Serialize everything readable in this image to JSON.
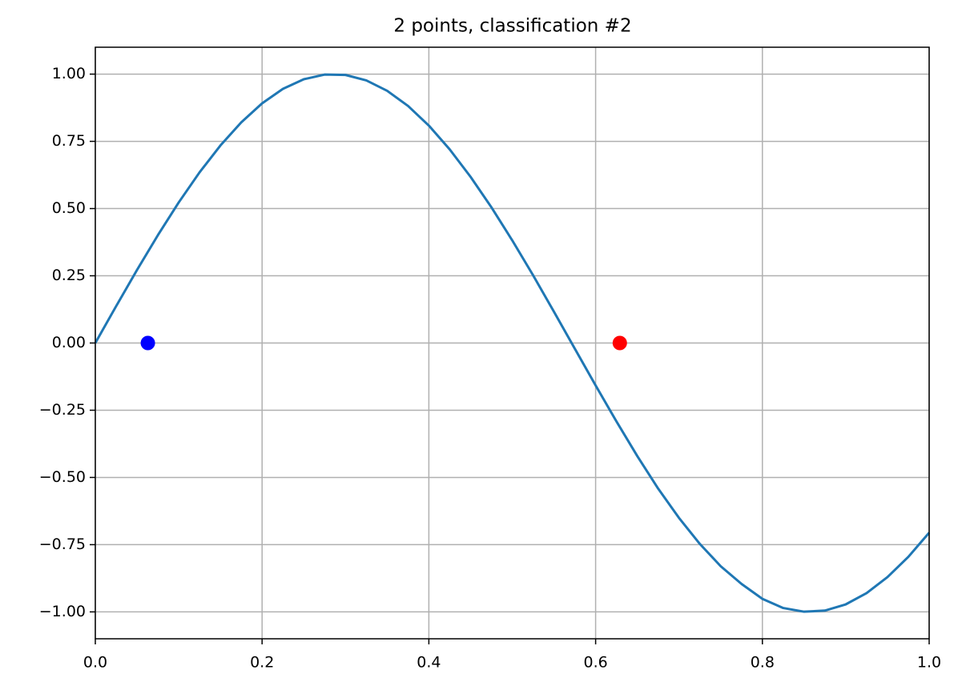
{
  "chart_data": {
    "type": "line",
    "title": "2 points, classification #2",
    "xlim": [
      0,
      1
    ],
    "ylim": [
      -1.1,
      1.1
    ],
    "grid": true,
    "xticks": [
      {
        "value": 0,
        "label": "0.0"
      },
      {
        "value": 0.2,
        "label": "0.2"
      },
      {
        "value": 0.4,
        "label": "0.4"
      },
      {
        "value": 0.6,
        "label": "0.6"
      },
      {
        "value": 0.8,
        "label": "0.8"
      },
      {
        "value": 1,
        "label": "1.0"
      }
    ],
    "yticks": [
      {
        "value": -1,
        "label": "−1.00"
      },
      {
        "value": -0.75,
        "label": "−0.75"
      },
      {
        "value": -0.5,
        "label": "−0.50"
      },
      {
        "value": -0.25,
        "label": "−0.25"
      },
      {
        "value": 0,
        "label": "0.00"
      },
      {
        "value": 0.25,
        "label": "0.25"
      },
      {
        "value": 0.5,
        "label": "0.50"
      },
      {
        "value": 0.75,
        "label": "0.75"
      },
      {
        "value": 1,
        "label": "1.00"
      }
    ],
    "series": [
      {
        "type": "line",
        "color": "#1f77b4",
        "x": [
          0,
          0.025,
          0.05,
          0.075,
          0.1,
          0.125,
          0.15,
          0.175,
          0.2,
          0.225,
          0.25,
          0.275,
          0.3,
          0.325,
          0.35,
          0.375,
          0.4,
          0.425,
          0.45,
          0.475,
          0.5,
          0.525,
          0.55,
          0.575,
          0.6,
          0.625,
          0.65,
          0.675,
          0.7,
          0.725,
          0.75,
          0.775,
          0.8,
          0.825,
          0.85,
          0.875,
          0.9,
          0.925,
          0.95,
          0.975,
          1
        ],
        "values": [
          0,
          0.1371,
          0.2715,
          0.4009,
          0.5227,
          0.6347,
          0.7344,
          0.8206,
          0.8912,
          0.9452,
          0.9809,
          0.9983,
          0.9969,
          0.9767,
          0.9379,
          0.8817,
          0.8085,
          0.7201,
          0.6181,
          0.5048,
          0.3817,
          0.2519,
          0.1164,
          -0.0209,
          -0.1577,
          -0.2919,
          -0.4207,
          -0.5416,
          -0.6506,
          -0.7473,
          -0.8301,
          -0.896,
          -0.9516,
          -0.9856,
          -0.9993,
          -0.9952,
          -0.972,
          -0.9301,
          -0.8707,
          -0.7954,
          -0.7055
        ]
      },
      {
        "type": "scatter",
        "color": "#0000ff",
        "x": [
          0.063
        ],
        "values": [
          0
        ]
      },
      {
        "type": "scatter",
        "color": "#ff0000",
        "x": [
          0.629
        ],
        "values": [
          0
        ]
      }
    ]
  }
}
